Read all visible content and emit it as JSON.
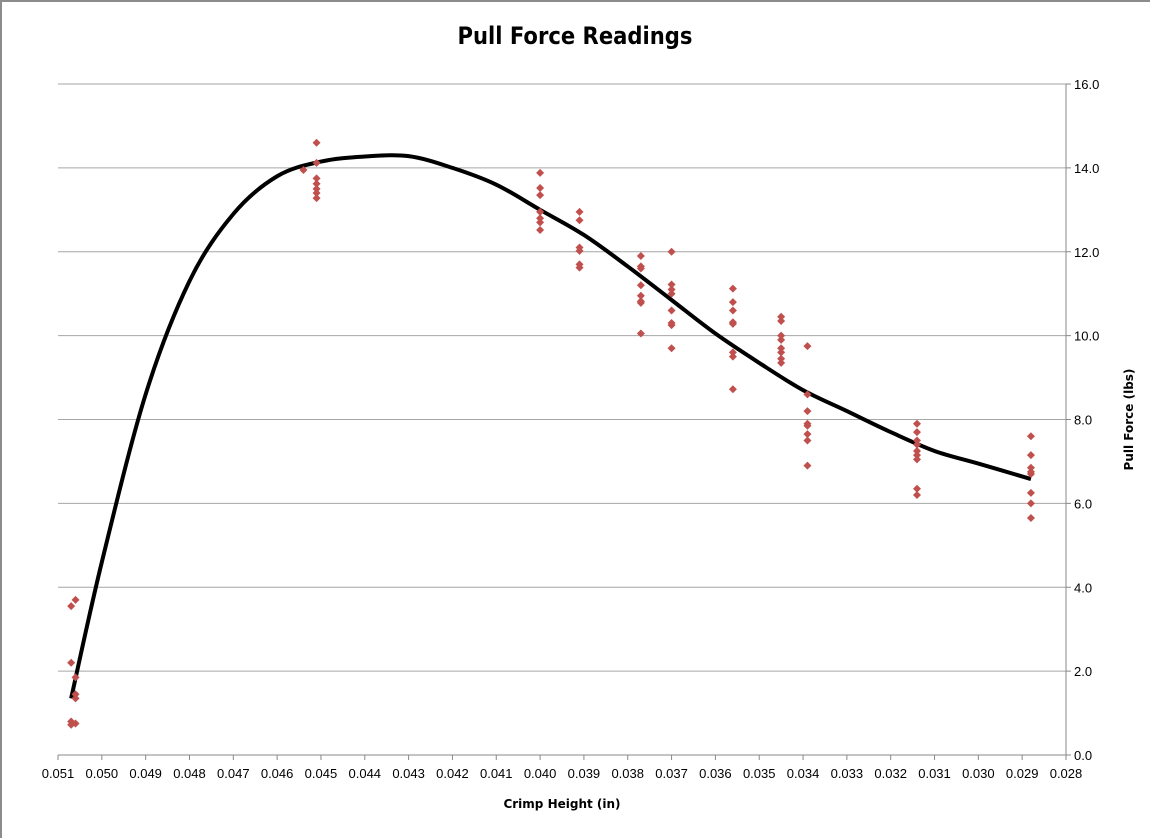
{
  "chart_data": {
    "type": "scatter",
    "title": "Pull Force Readings",
    "xlabel": "Crimp Height (in)",
    "ylabel": "Pull Force (lbs)",
    "xlim": [
      0.051,
      0.028
    ],
    "x_reversed": true,
    "ylim": [
      0.0,
      16.0
    ],
    "y_axis_position": "right",
    "grid": "horizontal",
    "legend": "none",
    "x_ticks": [
      "0.051",
      "0.050",
      "0.049",
      "0.048",
      "0.047",
      "0.046",
      "0.045",
      "0.044",
      "0.043",
      "0.042",
      "0.041",
      "0.040",
      "0.039",
      "0.038",
      "0.037",
      "0.036",
      "0.035",
      "0.034",
      "0.033",
      "0.032",
      "0.031",
      "0.030",
      "0.029",
      "0.028"
    ],
    "y_ticks": [
      "0.0",
      "2.0",
      "4.0",
      "6.0",
      "8.0",
      "10.0",
      "12.0",
      "14.0",
      "16.0"
    ],
    "colors": {
      "points": "#c0504d",
      "trendline": "#000000",
      "grid": "#a6a6a6"
    },
    "series": [
      {
        "type": "scatter",
        "points": [
          [
            0.0507,
            2.2
          ],
          [
            0.0507,
            3.55
          ],
          [
            0.0507,
            0.8
          ],
          [
            0.0507,
            0.72
          ],
          [
            0.0506,
            1.85
          ],
          [
            0.0506,
            1.45
          ],
          [
            0.0506,
            1.35
          ],
          [
            0.0506,
            0.75
          ],
          [
            0.0506,
            3.7
          ],
          [
            0.0454,
            13.95
          ],
          [
            0.0451,
            14.6
          ],
          [
            0.0451,
            14.12
          ],
          [
            0.0451,
            13.75
          ],
          [
            0.0451,
            13.62
          ],
          [
            0.0451,
            13.5
          ],
          [
            0.0451,
            13.4
          ],
          [
            0.0451,
            13.28
          ],
          [
            0.04,
            13.88
          ],
          [
            0.04,
            13.52
          ],
          [
            0.04,
            13.35
          ],
          [
            0.04,
            12.95
          ],
          [
            0.04,
            12.8
          ],
          [
            0.04,
            12.7
          ],
          [
            0.04,
            12.52
          ],
          [
            0.0391,
            12.95
          ],
          [
            0.0391,
            12.75
          ],
          [
            0.0391,
            12.1
          ],
          [
            0.0391,
            12.02
          ],
          [
            0.0391,
            11.7
          ],
          [
            0.0391,
            11.62
          ],
          [
            0.0377,
            11.9
          ],
          [
            0.0377,
            11.65
          ],
          [
            0.0377,
            11.6
          ],
          [
            0.0377,
            11.2
          ],
          [
            0.0377,
            10.95
          ],
          [
            0.0377,
            10.82
          ],
          [
            0.0377,
            10.78
          ],
          [
            0.0377,
            10.05
          ],
          [
            0.037,
            12.0
          ],
          [
            0.037,
            11.22
          ],
          [
            0.037,
            11.1
          ],
          [
            0.037,
            11.0
          ],
          [
            0.037,
            10.6
          ],
          [
            0.037,
            10.3
          ],
          [
            0.037,
            10.25
          ],
          [
            0.037,
            9.7
          ],
          [
            0.0356,
            11.12
          ],
          [
            0.0356,
            10.8
          ],
          [
            0.0356,
            10.6
          ],
          [
            0.0356,
            10.32
          ],
          [
            0.0356,
            10.28
          ],
          [
            0.0356,
            9.6
          ],
          [
            0.0356,
            9.5
          ],
          [
            0.0356,
            8.72
          ],
          [
            0.0345,
            10.45
          ],
          [
            0.0345,
            10.35
          ],
          [
            0.0345,
            10.0
          ],
          [
            0.0345,
            9.9
          ],
          [
            0.0345,
            9.7
          ],
          [
            0.0345,
            9.6
          ],
          [
            0.0345,
            9.45
          ],
          [
            0.0345,
            9.35
          ],
          [
            0.0339,
            9.75
          ],
          [
            0.0339,
            8.6
          ],
          [
            0.0339,
            8.2
          ],
          [
            0.0339,
            7.9
          ],
          [
            0.0339,
            7.85
          ],
          [
            0.0339,
            7.65
          ],
          [
            0.0339,
            7.5
          ],
          [
            0.0339,
            6.9
          ],
          [
            0.0314,
            7.9
          ],
          [
            0.0314,
            7.7
          ],
          [
            0.0314,
            7.5
          ],
          [
            0.0314,
            7.4
          ],
          [
            0.0314,
            7.25
          ],
          [
            0.0314,
            7.15
          ],
          [
            0.0314,
            7.05
          ],
          [
            0.0314,
            6.35
          ],
          [
            0.0314,
            6.2
          ],
          [
            0.0288,
            7.6
          ],
          [
            0.0288,
            7.15
          ],
          [
            0.0288,
            6.85
          ],
          [
            0.0288,
            6.75
          ],
          [
            0.0288,
            6.7
          ],
          [
            0.0288,
            6.25
          ],
          [
            0.0288,
            6.0
          ],
          [
            0.0288,
            5.65
          ]
        ]
      },
      {
        "type": "trendline",
        "points": [
          [
            0.0507,
            1.35
          ],
          [
            0.05,
            4.6
          ],
          [
            0.049,
            8.6
          ],
          [
            0.048,
            11.3
          ],
          [
            0.047,
            12.9
          ],
          [
            0.046,
            13.8
          ],
          [
            0.045,
            14.15
          ],
          [
            0.044,
            14.27
          ],
          [
            0.043,
            14.28
          ],
          [
            0.042,
            14.0
          ],
          [
            0.041,
            13.6
          ],
          [
            0.04,
            13.0
          ],
          [
            0.039,
            12.4
          ],
          [
            0.038,
            11.65
          ],
          [
            0.037,
            10.85
          ],
          [
            0.036,
            10.05
          ],
          [
            0.035,
            9.35
          ],
          [
            0.034,
            8.7
          ],
          [
            0.033,
            8.2
          ],
          [
            0.032,
            7.7
          ],
          [
            0.031,
            7.25
          ],
          [
            0.03,
            6.95
          ],
          [
            0.0288,
            6.58
          ]
        ]
      }
    ]
  }
}
